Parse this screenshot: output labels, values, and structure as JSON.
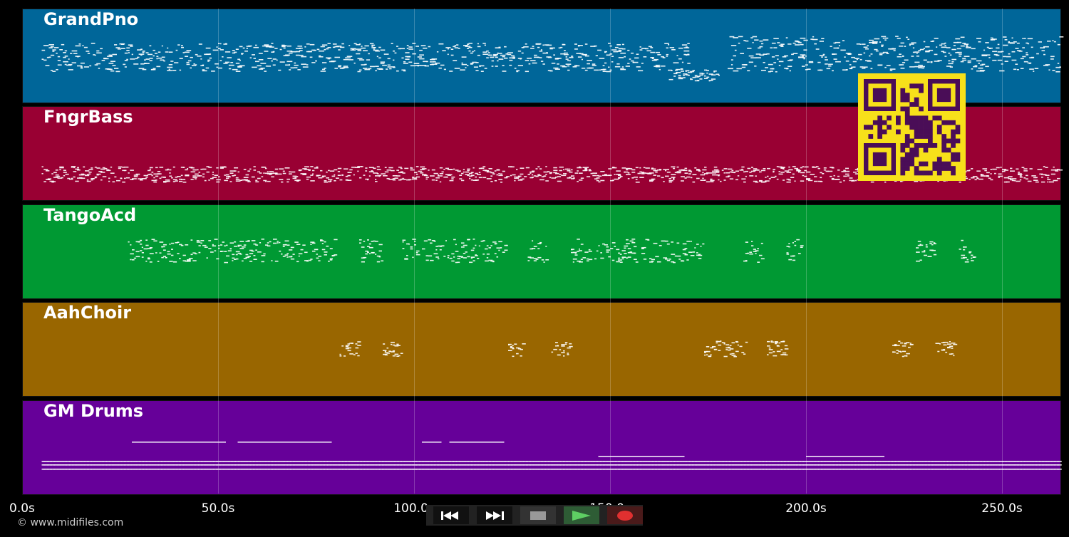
{
  "tracks": [
    {
      "name": "GrandPno",
      "color": "#006699",
      "notes": "piano"
    },
    {
      "name": "FngrBass",
      "color": "#990033",
      "notes": "bass"
    },
    {
      "name": "TangoAcd",
      "color": "#009933",
      "notes": "accordion"
    },
    {
      "name": "AahChoir",
      "color": "#996600",
      "notes": "choir"
    },
    {
      "name": "GM Drums",
      "color": "#660099",
      "notes": "drums"
    }
  ],
  "timeline": {
    "unit": "s",
    "max_seconds": 265,
    "ticks": [
      "0.0s",
      "50.0s",
      "100.0s",
      "150.0s",
      "200.0s",
      "250.0s"
    ]
  },
  "copyright": "© www.midifiles.com",
  "transport": {
    "buttons": [
      {
        "name": "rewind-button",
        "icon": "rewind-icon"
      },
      {
        "name": "fast-forward-button",
        "icon": "fast-forward-icon"
      },
      {
        "name": "stop-button",
        "icon": "stop-icon"
      },
      {
        "name": "play-button",
        "icon": "play-icon"
      },
      {
        "name": "record-button",
        "icon": "record-icon"
      }
    ]
  },
  "qr_code": {
    "icon": "qr-code-icon",
    "color": "#f7e01a"
  }
}
